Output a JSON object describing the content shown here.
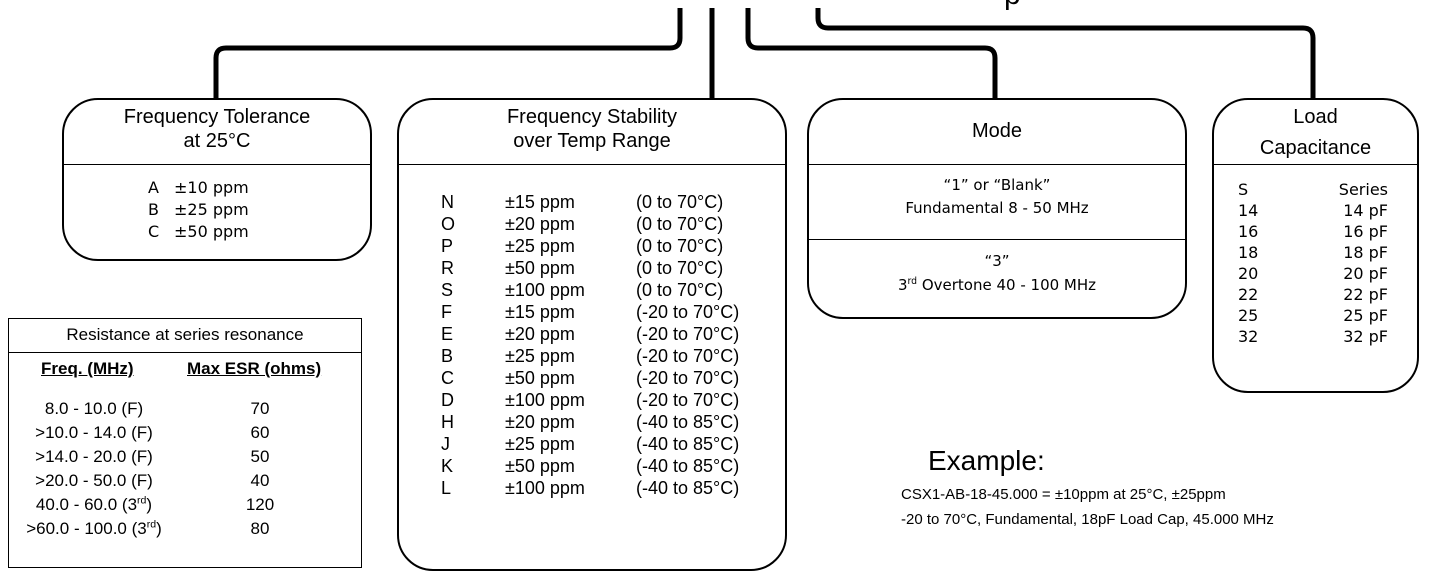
{
  "tolerance": {
    "title_line1": "Frequency Tolerance",
    "title_line2": "at 25°C",
    "rows": [
      {
        "code": "A",
        "value": "±10 ppm"
      },
      {
        "code": "B",
        "value": "±25 ppm"
      },
      {
        "code": "C",
        "value": "±50 ppm"
      }
    ]
  },
  "stability": {
    "title_line1": "Frequency Stability",
    "title_line2": "over Temp Range",
    "rows": [
      {
        "code": "N",
        "ppm": "±15 ppm",
        "range": "(0 to 70°C)"
      },
      {
        "code": "O",
        "ppm": "±20 ppm",
        "range": "(0 to 70°C)"
      },
      {
        "code": "P",
        "ppm": "±25 ppm",
        "range": "(0 to 70°C)"
      },
      {
        "code": "R",
        "ppm": "±50 ppm",
        "range": "(0 to 70°C)"
      },
      {
        "code": "S",
        "ppm": "±100 ppm",
        "range": "(0 to 70°C)"
      },
      {
        "code": "F",
        "ppm": "±15 ppm",
        "range": "(-20 to 70°C)"
      },
      {
        "code": "E",
        "ppm": "±20 ppm",
        "range": "(-20 to 70°C)"
      },
      {
        "code": "B",
        "ppm": "±25 ppm",
        "range": "(-20 to 70°C)"
      },
      {
        "code": "C",
        "ppm": "±50 ppm",
        "range": "(-20 to 70°C)"
      },
      {
        "code": "D",
        "ppm": "±100 ppm",
        "range": "(-20 to 70°C)"
      },
      {
        "code": "H",
        "ppm": "±20 ppm",
        "range": "(-40 to 85°C)"
      },
      {
        "code": "J",
        "ppm": "±25 ppm",
        "range": "(-40 to 85°C)"
      },
      {
        "code": "K",
        "ppm": "±50 ppm",
        "range": "(-40 to 85°C)"
      },
      {
        "code": "L",
        "ppm": "±100 ppm",
        "range": "(-40 to 85°C)"
      }
    ]
  },
  "mode": {
    "title": "Mode",
    "opt1_code": "“1” or “Blank”",
    "opt1_desc": "Fundamental 8 - 50 MHz",
    "opt2_code": "“3”",
    "opt2_desc_pre": "3",
    "opt2_desc_sup": "rd",
    "opt2_desc_post": " Overtone 40 - 100 MHz"
  },
  "load": {
    "title_line1": "Load",
    "title_line2": "Capacitance",
    "rows": [
      {
        "code": "S",
        "value": "Series"
      },
      {
        "code": "14",
        "value": "14 pF"
      },
      {
        "code": "16",
        "value": "16 pF"
      },
      {
        "code": "18",
        "value": "18 pF"
      },
      {
        "code": "20",
        "value": "20 pF"
      },
      {
        "code": "22",
        "value": "22 pF"
      },
      {
        "code": "25",
        "value": "25 pF"
      },
      {
        "code": "32",
        "value": "32 pF"
      }
    ]
  },
  "esr": {
    "title": "Resistance at series resonance",
    "col1": "Freq. (MHz)",
    "col2": "Max ESR (ohms)",
    "rows": [
      {
        "freq": "8.0 - 10.0 (F)",
        "sup": "",
        "tail": "",
        "esr": "70"
      },
      {
        "freq": ">10.0 - 14.0 (F)",
        "sup": "",
        "tail": "",
        "esr": "60"
      },
      {
        "freq": ">14.0 - 20.0 (F)",
        "sup": "",
        "tail": "",
        "esr": "50"
      },
      {
        "freq": ">20.0 - 50.0 (F)",
        "sup": "",
        "tail": "",
        "esr": "40"
      },
      {
        "freq": "40.0 - 60.0 (3",
        "sup": "rd",
        "tail": ")",
        "esr": "120"
      },
      {
        "freq": ">60.0 - 100.0 (3",
        "sup": "rd",
        "tail": ")",
        "esr": "80"
      }
    ]
  },
  "example": {
    "heading": "Example:",
    "line1": "CSX1-AB-18-45.000 = ±10ppm at 25°C, ±25ppm",
    "line2": "-20 to 70°C, Fundamental, 18pF Load Cap, 45.000 MHz"
  },
  "top_fragment": "p"
}
